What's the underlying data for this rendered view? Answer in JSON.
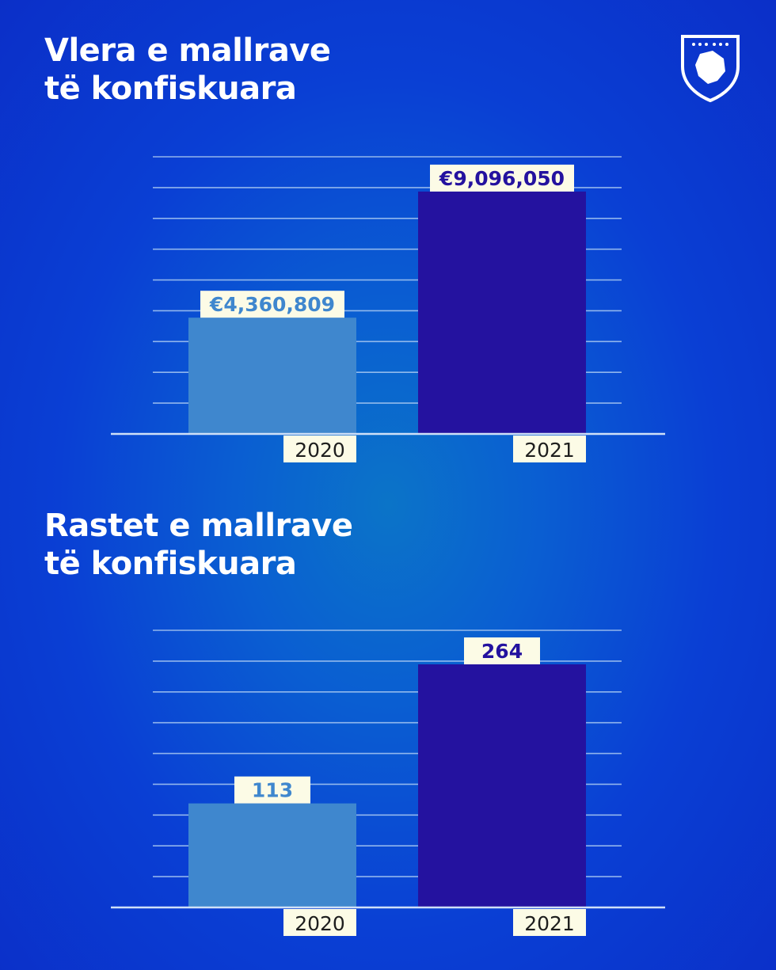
{
  "colors": {
    "bar_2020": "#3f87ce",
    "bar_2021": "#24129f",
    "label_bg": "#fcfbe6",
    "gridline": "#a9c9f2",
    "axis": "#cfe0f7"
  },
  "emblem": {
    "icon": "kosovo-emblem-icon"
  },
  "chart_data": [
    {
      "type": "bar",
      "title": "Vlera e mallrave\ntë konfiskuara",
      "categories": [
        "2020",
        "2021"
      ],
      "values": [
        4360809,
        9096050
      ],
      "value_labels": [
        "€4,360,809",
        "€9,096,050"
      ],
      "ylim": [
        0,
        10400000
      ],
      "grid": true,
      "gridline_count": 9
    },
    {
      "type": "bar",
      "title": "Rastet e mallrave\ntë konfiskuara",
      "categories": [
        "2020",
        "2021"
      ],
      "values": [
        113,
        264
      ],
      "value_labels": [
        "113",
        "264"
      ],
      "ylim": [
        0,
        301
      ],
      "grid": true,
      "gridline_count": 9
    }
  ]
}
